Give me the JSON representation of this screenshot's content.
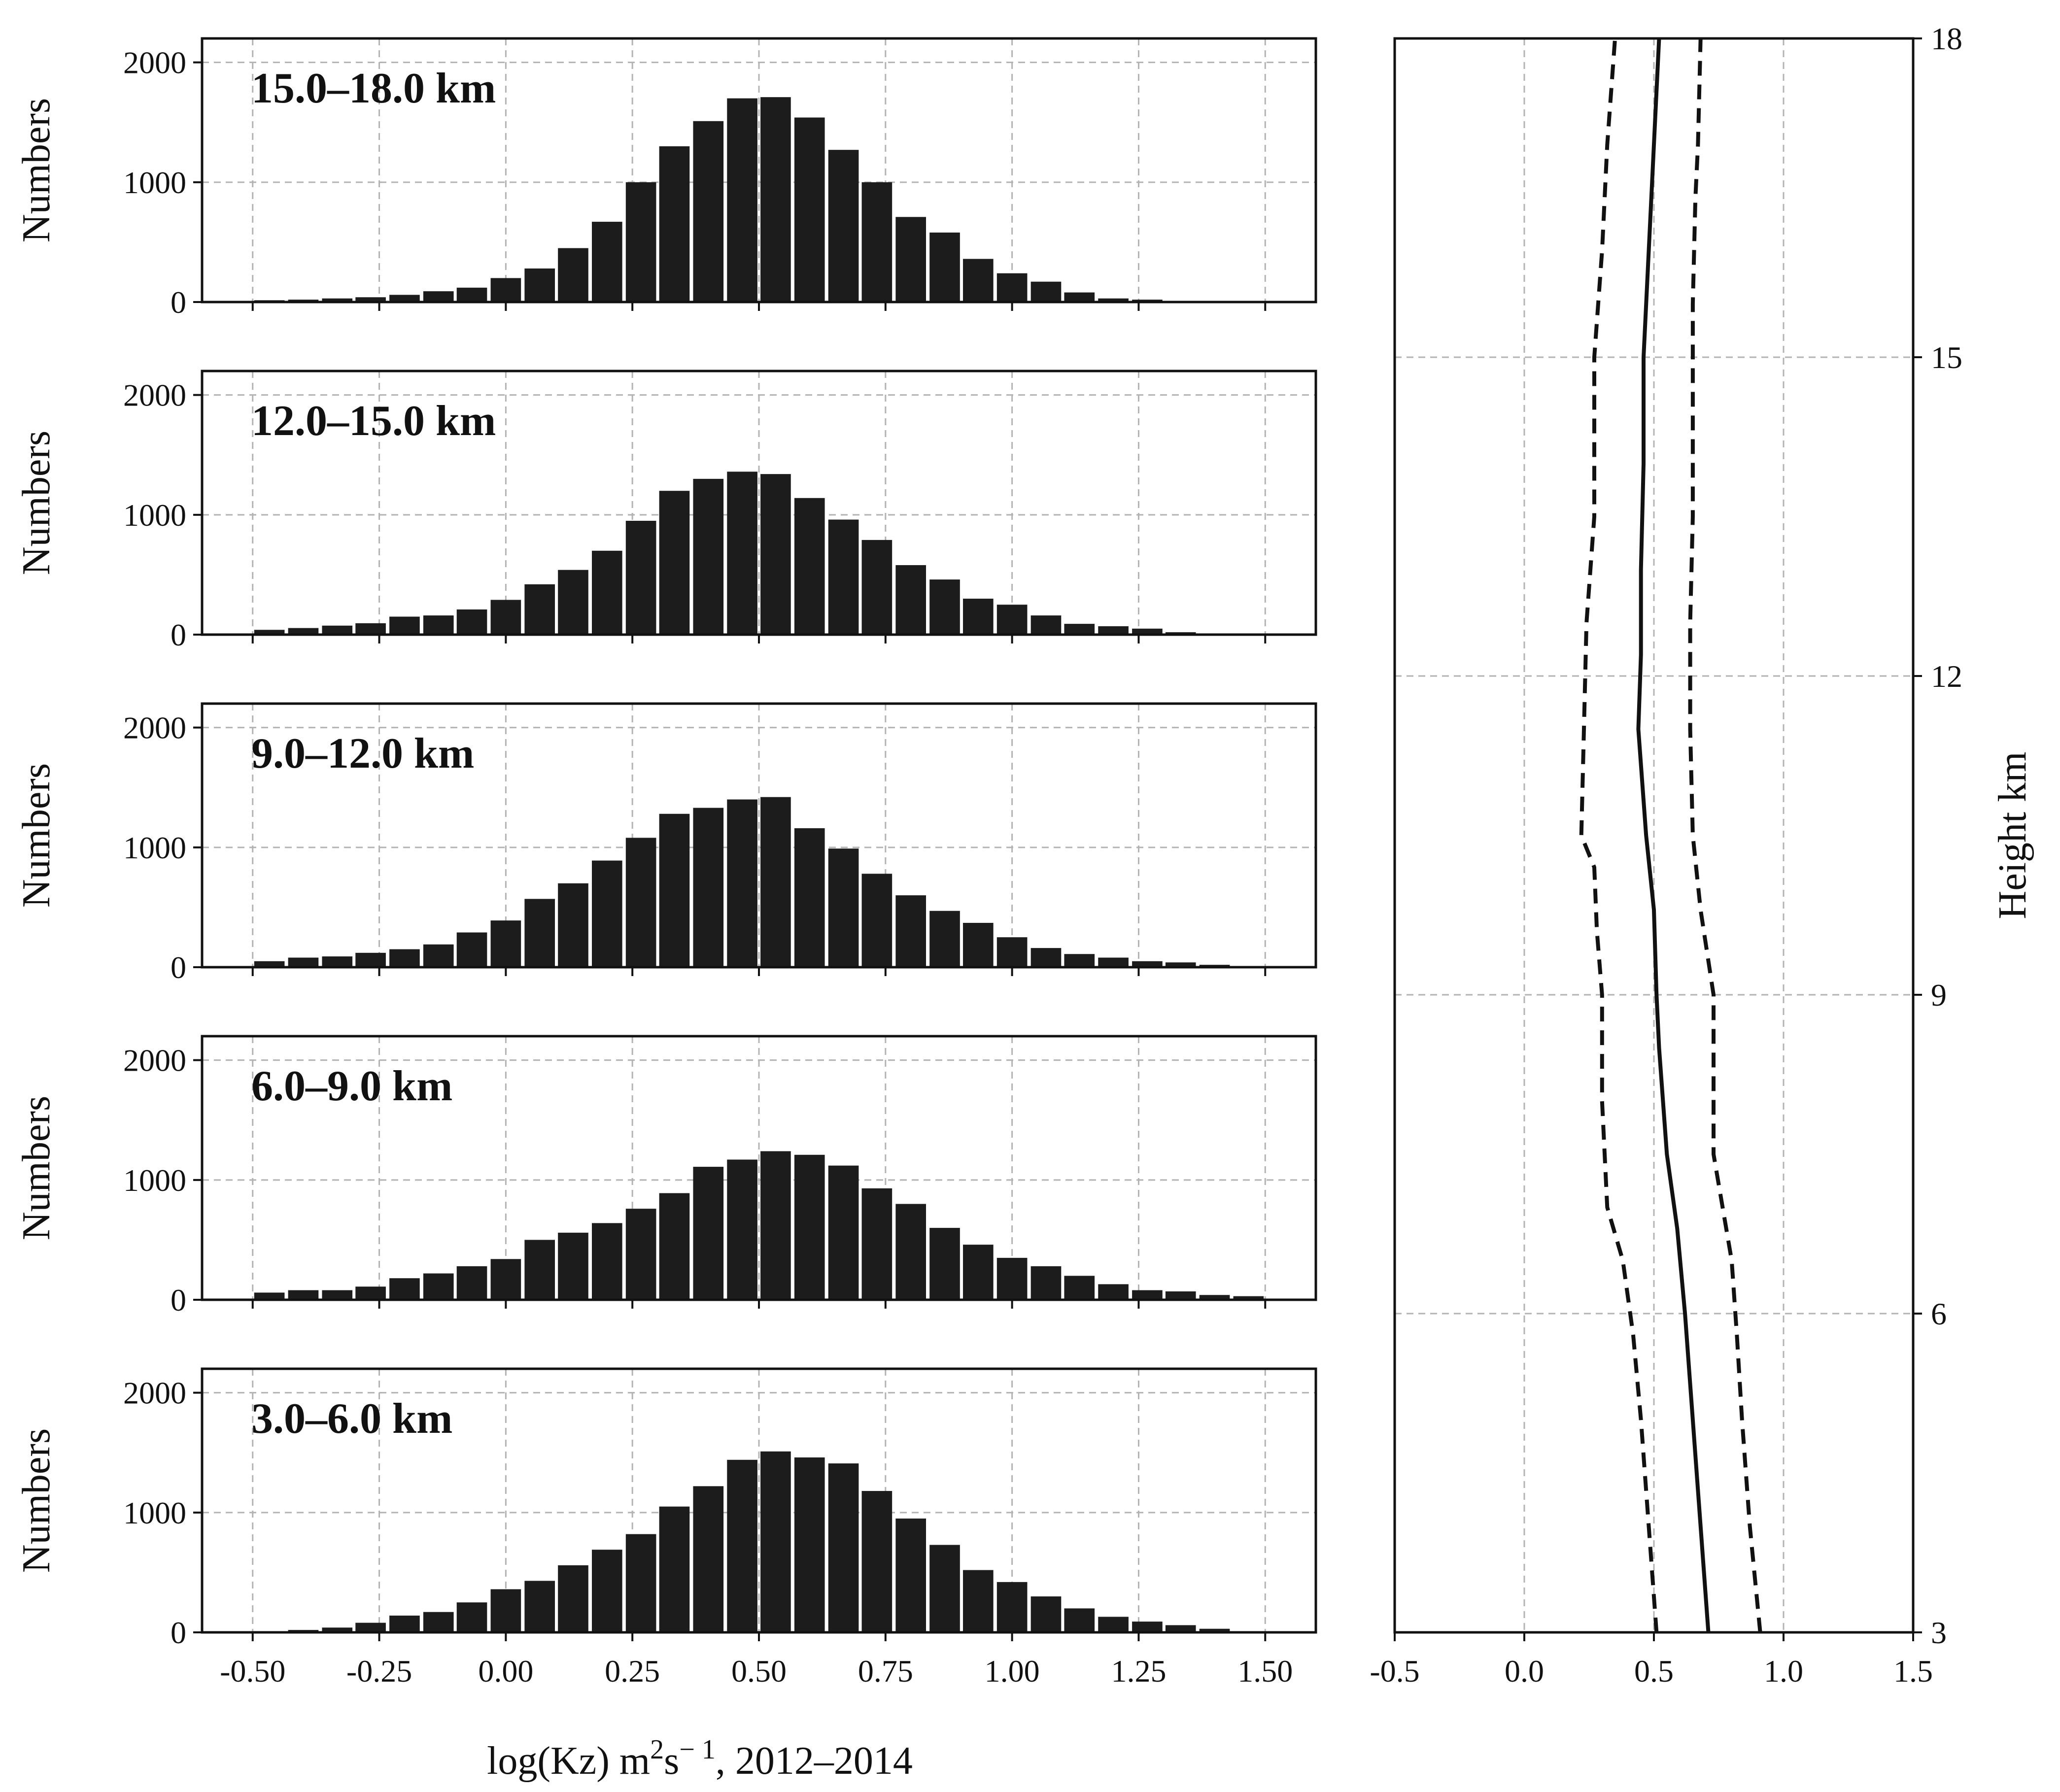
{
  "chart_data": [
    {
      "type": "bar",
      "panel": "histogram",
      "label": "15.0–18.0 km",
      "ylabel": "Numbers",
      "xlim": [
        -0.6,
        1.6
      ],
      "ylim": [
        0,
        2200
      ],
      "yticks": [
        0,
        1000,
        2000
      ],
      "x": [
        -0.467,
        -0.4,
        -0.333,
        -0.267,
        -0.2,
        -0.133,
        -0.067,
        0.0,
        0.067,
        0.133,
        0.2,
        0.267,
        0.333,
        0.4,
        0.467,
        0.533,
        0.6,
        0.667,
        0.733,
        0.8,
        0.867,
        0.933,
        1.0,
        1.067,
        1.133,
        1.2,
        1.267,
        1.333,
        1.4,
        1.467
      ],
      "values": [
        15,
        20,
        30,
        40,
        60,
        90,
        120,
        200,
        280,
        450,
        670,
        1000,
        1300,
        1510,
        1700,
        1710,
        1540,
        1270,
        1000,
        710,
        580,
        360,
        240,
        170,
        80,
        30,
        20,
        10,
        5,
        0
      ]
    },
    {
      "type": "bar",
      "panel": "histogram",
      "label": "12.0–15.0 km",
      "ylabel": "Numbers",
      "xlim": [
        -0.6,
        1.6
      ],
      "ylim": [
        0,
        2200
      ],
      "yticks": [
        0,
        1000,
        2000
      ],
      "x": [
        -0.467,
        -0.4,
        -0.333,
        -0.267,
        -0.2,
        -0.133,
        -0.067,
        0.0,
        0.067,
        0.133,
        0.2,
        0.267,
        0.333,
        0.4,
        0.467,
        0.533,
        0.6,
        0.667,
        0.733,
        0.8,
        0.867,
        0.933,
        1.0,
        1.067,
        1.133,
        1.2,
        1.267,
        1.333,
        1.4,
        1.467
      ],
      "values": [
        40,
        55,
        75,
        95,
        150,
        160,
        210,
        290,
        420,
        540,
        700,
        950,
        1200,
        1300,
        1360,
        1340,
        1140,
        960,
        790,
        580,
        460,
        300,
        250,
        160,
        90,
        70,
        50,
        20,
        10,
        5
      ]
    },
    {
      "type": "bar",
      "panel": "histogram",
      "label": "9.0–12.0 km",
      "ylabel": "Numbers",
      "xlim": [
        -0.6,
        1.6
      ],
      "ylim": [
        0,
        2200
      ],
      "yticks": [
        0,
        1000,
        2000
      ],
      "x": [
        -0.467,
        -0.4,
        -0.333,
        -0.267,
        -0.2,
        -0.133,
        -0.067,
        0.0,
        0.067,
        0.133,
        0.2,
        0.267,
        0.333,
        0.4,
        0.467,
        0.533,
        0.6,
        0.667,
        0.733,
        0.8,
        0.867,
        0.933,
        1.0,
        1.067,
        1.133,
        1.2,
        1.267,
        1.333,
        1.4,
        1.467
      ],
      "values": [
        50,
        80,
        90,
        120,
        150,
        190,
        290,
        390,
        570,
        700,
        890,
        1080,
        1280,
        1330,
        1400,
        1420,
        1160,
        990,
        780,
        600,
        470,
        370,
        250,
        160,
        110,
        80,
        50,
        40,
        20,
        10
      ]
    },
    {
      "type": "bar",
      "panel": "histogram",
      "label": "6.0–9.0 km",
      "ylabel": "Numbers",
      "xlim": [
        -0.6,
        1.6
      ],
      "ylim": [
        0,
        2200
      ],
      "yticks": [
        0,
        1000,
        2000
      ],
      "x": [
        -0.467,
        -0.4,
        -0.333,
        -0.267,
        -0.2,
        -0.133,
        -0.067,
        0.0,
        0.067,
        0.133,
        0.2,
        0.267,
        0.333,
        0.4,
        0.467,
        0.533,
        0.6,
        0.667,
        0.733,
        0.8,
        0.867,
        0.933,
        1.0,
        1.067,
        1.133,
        1.2,
        1.267,
        1.333,
        1.4,
        1.467
      ],
      "values": [
        60,
        80,
        80,
        110,
        180,
        220,
        280,
        340,
        500,
        560,
        640,
        760,
        890,
        1110,
        1170,
        1240,
        1210,
        1120,
        930,
        800,
        600,
        460,
        350,
        280,
        200,
        130,
        80,
        70,
        40,
        30
      ]
    },
    {
      "type": "bar",
      "panel": "histogram",
      "label": "3.0–6.0 km",
      "ylabel": "Numbers",
      "xlabel": "log(Kz) m²s⁻¹, 2012–2014",
      "xlim": [
        -0.6,
        1.6
      ],
      "ylim": [
        0,
        2200
      ],
      "yticks": [
        0,
        1000,
        2000
      ],
      "xticks": [
        "-0.50",
        "-0.25",
        "0.00",
        "0.25",
        "0.50",
        "0.75",
        "1.00",
        "1.25",
        "1.50"
      ],
      "x": [
        -0.467,
        -0.4,
        -0.333,
        -0.267,
        -0.2,
        -0.133,
        -0.067,
        0.0,
        0.067,
        0.133,
        0.2,
        0.267,
        0.333,
        0.4,
        0.467,
        0.533,
        0.6,
        0.667,
        0.733,
        0.8,
        0.867,
        0.933,
        1.0,
        1.067,
        1.133,
        1.2,
        1.267,
        1.333,
        1.4,
        1.467
      ],
      "values": [
        5,
        20,
        40,
        80,
        140,
        170,
        250,
        360,
        430,
        560,
        690,
        820,
        1050,
        1220,
        1440,
        1510,
        1460,
        1410,
        1180,
        950,
        730,
        520,
        420,
        300,
        200,
        130,
        90,
        60,
        30,
        10
      ]
    },
    {
      "type": "line",
      "panel": "profile",
      "ylabel": "Height km",
      "xlim": [
        -0.5,
        1.5
      ],
      "ylim": [
        3,
        18
      ],
      "xticks": [
        "-0.5",
        "0.0",
        "0.5",
        "1.0",
        "1.5"
      ],
      "yticks": [
        "3",
        "6",
        "9",
        "12",
        "15",
        "18"
      ],
      "series": [
        {
          "name": "median",
          "style": "solid",
          "x": [
            0.71,
            0.68,
            0.65,
            0.62,
            0.59,
            0.55,
            0.52,
            0.51,
            0.5,
            0.47,
            0.44,
            0.45,
            0.45,
            0.46,
            0.46,
            0.48,
            0.5,
            0.52
          ],
          "y": [
            3.0,
            4.0,
            5.0,
            6.0,
            6.8,
            7.5,
            8.5,
            9.0,
            9.8,
            10.5,
            11.5,
            12.2,
            13.0,
            14.0,
            15.0,
            16.0,
            17.0,
            18.0
          ]
        },
        {
          "name": "lower",
          "style": "dashed",
          "x": [
            0.51,
            0.48,
            0.45,
            0.42,
            0.38,
            0.32,
            0.3,
            0.3,
            0.28,
            0.27,
            0.22,
            0.23,
            0.24,
            0.27,
            0.27,
            0.3,
            0.32,
            0.35
          ],
          "y": [
            3.0,
            4.0,
            5.0,
            5.8,
            6.5,
            7.0,
            8.0,
            9.0,
            9.6,
            10.2,
            10.5,
            11.5,
            12.5,
            13.5,
            15.0,
            16.0,
            17.0,
            18.0
          ]
        },
        {
          "name": "upper",
          "style": "dashed",
          "x": [
            0.91,
            0.87,
            0.84,
            0.82,
            0.8,
            0.73,
            0.73,
            0.73,
            0.68,
            0.65,
            0.64,
            0.64,
            0.65,
            0.65,
            0.65,
            0.66,
            0.67,
            0.68
          ],
          "y": [
            3.0,
            4.0,
            5.0,
            5.8,
            6.5,
            7.5,
            8.5,
            9.0,
            9.8,
            10.5,
            11.5,
            12.5,
            13.5,
            14.5,
            15.5,
            16.5,
            17.0,
            18.0
          ]
        }
      ]
    }
  ]
}
